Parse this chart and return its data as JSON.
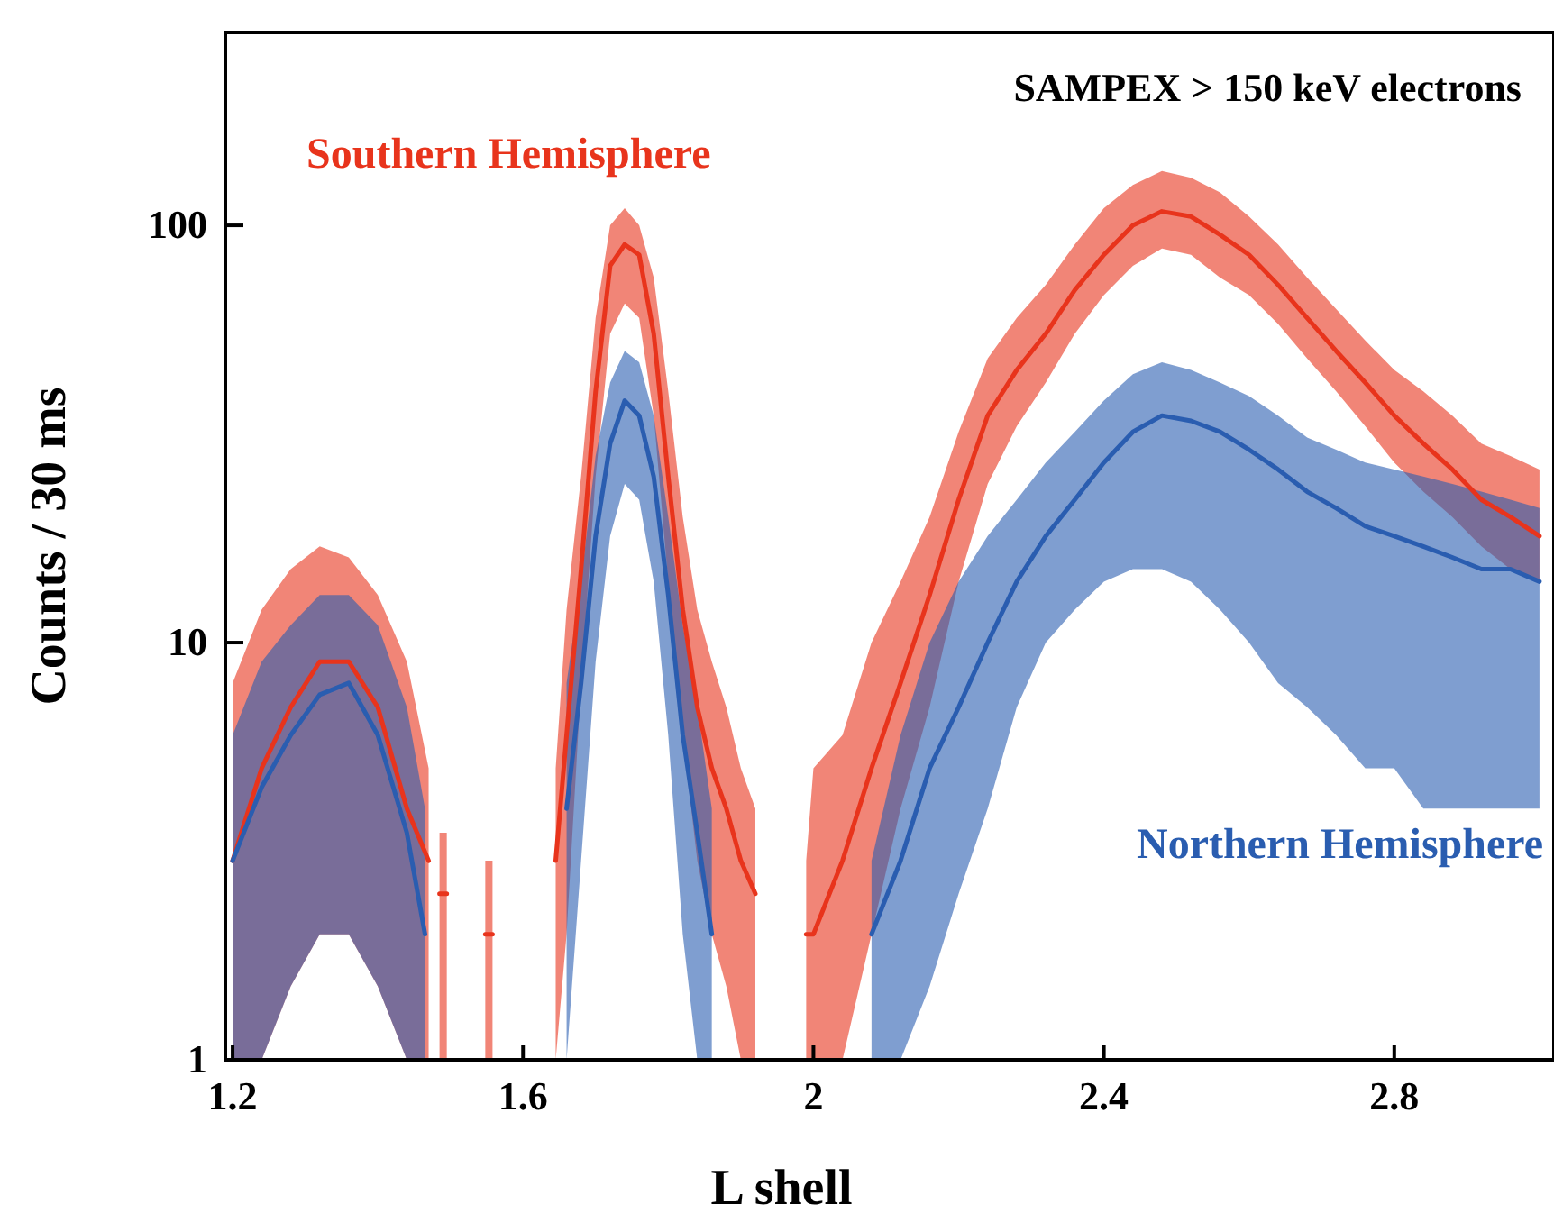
{
  "chart_data": {
    "type": "line",
    "title": "SAMPEX > 150 keV electrons",
    "xlabel": "L shell",
    "ylabel": "Counts / 30 ms",
    "log": "y",
    "xlim": [
      1.19,
      3.02
    ],
    "xticks": [
      1.2,
      1.6,
      2,
      2.4,
      2.8
    ],
    "ylim": [
      1,
      290
    ],
    "yticks": [
      1,
      10,
      100
    ],
    "series": [
      {
        "name": "Southern Hemisphere",
        "color": "#e8341c",
        "x": [
          1.2,
          1.24,
          1.28,
          1.32,
          1.36,
          1.4,
          1.44,
          1.47,
          1.48,
          1.485,
          1.495,
          1.5,
          1.548,
          1.558,
          1.56,
          1.645,
          1.66,
          1.68,
          1.7,
          1.72,
          1.74,
          1.76,
          1.78,
          1.8,
          1.82,
          1.84,
          1.86,
          1.88,
          1.9,
          1.92,
          1.93,
          1.99,
          2,
          2.04,
          2.08,
          2.12,
          2.16,
          2.2,
          2.24,
          2.28,
          2.32,
          2.36,
          2.4,
          2.44,
          2.48,
          2.52,
          2.56,
          2.6,
          2.64,
          2.68,
          2.72,
          2.76,
          2.8,
          2.84,
          2.88,
          2.92,
          2.96,
          3
        ],
        "values": [
          3,
          5,
          7,
          9,
          9,
          7,
          4,
          3,
          null,
          2.5,
          2.5,
          null,
          2,
          2,
          null,
          3,
          6,
          15,
          40,
          80,
          90,
          85,
          55,
          25,
          12,
          7,
          5,
          4,
          3,
          2.5,
          null,
          2,
          2,
          3,
          5,
          8,
          13,
          22,
          35,
          45,
          55,
          70,
          85,
          100,
          108,
          105,
          95,
          85,
          72,
          60,
          50,
          42,
          35,
          30,
          26,
          22,
          20,
          18
        ],
        "lower": [
          1,
          1,
          1.5,
          2,
          2,
          1.5,
          1,
          1,
          null,
          1,
          1,
          null,
          1,
          1,
          null,
          1,
          2,
          8,
          25,
          55,
          65,
          60,
          35,
          14,
          6,
          3,
          2,
          1.5,
          1,
          1,
          null,
          1,
          1,
          1,
          2,
          4,
          7,
          14,
          24,
          33,
          42,
          55,
          68,
          80,
          88,
          85,
          75,
          68,
          58,
          48,
          40,
          33,
          27,
          23,
          20,
          17,
          15,
          14
        ],
        "upper": [
          8,
          12,
          15,
          17,
          16,
          13,
          9,
          5,
          null,
          3.5,
          3.5,
          null,
          3,
          3,
          null,
          5,
          12,
          25,
          60,
          100,
          110,
          100,
          75,
          40,
          20,
          12,
          9,
          7,
          5,
          4,
          null,
          3,
          5,
          6,
          10,
          14,
          20,
          32,
          48,
          60,
          72,
          90,
          110,
          125,
          135,
          130,
          120,
          105,
          90,
          75,
          63,
          53,
          45,
          40,
          35,
          30,
          28,
          26
        ]
      },
      {
        "name": "Northern Hemisphere",
        "color": "#2a5db0",
        "x": [
          1.2,
          1.24,
          1.28,
          1.32,
          1.36,
          1.4,
          1.44,
          1.465,
          1.5,
          1.66,
          1.68,
          1.7,
          1.72,
          1.74,
          1.76,
          1.78,
          1.8,
          1.82,
          1.84,
          1.86,
          1.88,
          2.08,
          2.12,
          2.16,
          2.2,
          2.24,
          2.28,
          2.32,
          2.36,
          2.4,
          2.44,
          2.48,
          2.52,
          2.56,
          2.6,
          2.64,
          2.68,
          2.72,
          2.76,
          2.8,
          2.84,
          2.88,
          2.92,
          2.96,
          3
        ],
        "values": [
          3,
          4.5,
          6,
          7.5,
          8,
          6,
          3.5,
          2,
          null,
          4,
          8,
          18,
          30,
          38,
          35,
          25,
          13,
          6,
          3.5,
          2,
          null,
          2,
          3,
          5,
          7,
          10,
          14,
          18,
          22,
          27,
          32,
          35,
          34,
          32,
          29,
          26,
          23,
          21,
          19,
          18,
          17,
          16,
          15,
          15,
          14
        ],
        "lower": [
          1,
          1,
          1.5,
          2,
          2,
          1.5,
          1,
          1,
          null,
          1,
          3,
          9,
          18,
          24,
          22,
          14,
          6,
          2,
          1,
          1,
          null,
          1,
          1,
          1.5,
          2.5,
          4,
          7,
          10,
          12,
          14,
          15,
          15,
          14,
          12,
          10,
          8,
          7,
          6,
          5,
          5,
          4,
          4,
          4,
          4,
          4
        ],
        "upper": [
          6,
          9,
          11,
          13,
          13,
          11,
          7,
          4,
          null,
          8,
          14,
          28,
          42,
          50,
          47,
          35,
          20,
          11,
          7,
          4,
          null,
          3,
          6,
          10,
          14,
          18,
          22,
          27,
          32,
          38,
          44,
          47,
          45,
          42,
          39,
          35,
          31,
          29,
          27,
          26,
          25,
          24,
          23,
          22,
          21
        ]
      }
    ]
  }
}
